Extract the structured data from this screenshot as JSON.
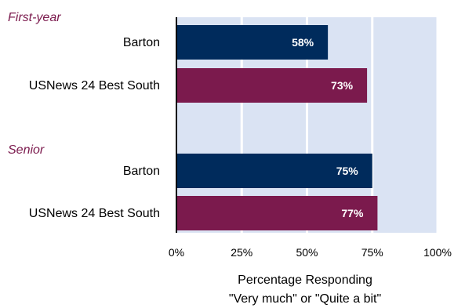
{
  "chart_data": {
    "type": "bar",
    "orientation": "horizontal",
    "xlabel": [
      "Percentage Responding",
      "\"Very much\" or \"Quite a bit\""
    ],
    "xlim": [
      0,
      100
    ],
    "x_ticks": [
      "0%",
      "25%",
      "50%",
      "75%",
      "100%"
    ],
    "grid": true,
    "colors": {
      "plot_bg": "#dae3f3",
      "grid": "#ffffff",
      "barton": "#002b5c",
      "comparison": "#7b1a4d",
      "group_label": "#7b1a4d"
    },
    "groups": [
      {
        "name": "First-year",
        "bars": [
          {
            "category": "Barton",
            "value": 58,
            "label": "58%",
            "color": "#002b5c"
          },
          {
            "category": "USNews 24 Best South",
            "value": 73,
            "label": "73%",
            "color": "#7b1a4d"
          }
        ]
      },
      {
        "name": "Senior",
        "bars": [
          {
            "category": "Barton",
            "value": 75,
            "label": "75%",
            "color": "#002b5c"
          },
          {
            "category": "USNews 24 Best South",
            "value": 77,
            "label": "77%",
            "color": "#7b1a4d"
          }
        ]
      }
    ]
  }
}
